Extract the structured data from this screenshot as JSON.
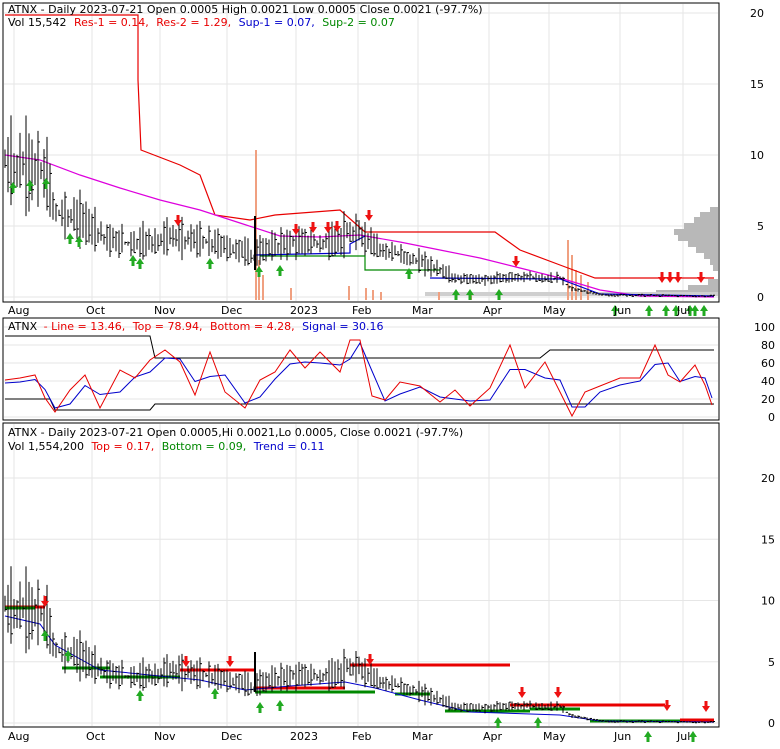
{
  "colors": {
    "red": "#e80000",
    "green": "#008800",
    "blue": "#0000cc",
    "magenta": "#dd00dd",
    "volume": "#f0a080",
    "profile": "#b8b8b8",
    "arrow_up": "#22aa22",
    "arrow_down": "#ee1111"
  },
  "panel1": {
    "header1": "ATNX - Daily 2023-07-21 Open 0.0005  High 0.0021  Low 0.0005  Close 0.0021 (-97.7%)",
    "header2": {
      "vol": "Vol 15,542",
      "res1": "Res-1 = 0.14,",
      "res2": "Res-2 = 1.29,",
      "sup1": "Sup-1 = 0.07,",
      "sup2": "Sup-2 = 0.07"
    },
    "y_ticks": [
      "20",
      "15",
      "10",
      "5",
      "0"
    ],
    "x_ticks": [
      "Aug",
      "Oct",
      "Nov",
      "Dec",
      "2023",
      "Feb",
      "Mar",
      "Apr",
      "May",
      "Jun",
      "Jul"
    ]
  },
  "panel2": {
    "header": {
      "ticker": "ATNX",
      "line": "- Line = 13.46,",
      "top": "Top = 78.94,",
      "bottom": "Bottom = 4.28,",
      "signal": "Signal = 30.16"
    },
    "y_ticks": [
      "100",
      "80",
      "60",
      "40",
      "20",
      "0"
    ]
  },
  "panel3": {
    "header1": "ATNX - Daily 2023-07-21 Open 0.0005,Hi 0.0021,Lo 0.0005, Close 0.0021 (-97.7%)",
    "header2": {
      "vol": "Vol 1,554,200",
      "top": "Top = 0.17,",
      "bottom": "Bottom = 0.09,",
      "trend": "Trend = 0.11"
    },
    "y_ticks": [
      "20",
      "15",
      "10",
      "5",
      "0"
    ],
    "x_ticks": [
      "Aug",
      "Oct",
      "Nov",
      "Dec",
      "2023",
      "Feb",
      "Mar",
      "Apr",
      "May",
      "Jun",
      "Jul"
    ]
  },
  "chart_data": [
    {
      "type": "line",
      "title": "ATNX - Daily 2023-07-21",
      "ylim": [
        0,
        22
      ],
      "x": [
        "Aug",
        "Oct",
        "Nov",
        "Dec",
        "2023",
        "Feb",
        "Mar",
        "Apr",
        "May",
        "Jun",
        "Jul"
      ],
      "series": [
        {
          "name": "Close",
          "values": [
            9.2,
            5.5,
            4.0,
            3.7,
            3.0,
            4.3,
            2.6,
            1.2,
            1.4,
            0.15,
            0.05
          ]
        },
        {
          "name": "Res-2",
          "values": [
            21,
            21,
            9.5,
            6.0,
            5.8,
            5.0,
            4.5,
            4.5,
            3.0,
            1.3,
            1.29
          ]
        },
        {
          "name": "Sup-2",
          "values": [
            11,
            7.0,
            4.5,
            3.8,
            3.2,
            3.0,
            2.5,
            1.5,
            1.5,
            0.3,
            0.07
          ]
        }
      ],
      "levels": {
        "Res-1": 0.14,
        "Res-2": 1.29,
        "Sup-1": 0.07,
        "Sup-2": 0.07
      }
    },
    {
      "type": "line",
      "title": "ATNX",
      "ylim": [
        0,
        100
      ],
      "series": [
        {
          "name": "Line",
          "values": [
            40,
            8,
            50,
            22,
            65,
            30,
            85,
            25,
            42,
            20,
            80,
            8,
            42,
            48,
            75,
            13.46
          ]
        },
        {
          "name": "Signal",
          "values": [
            38,
            12,
            40,
            30,
            55,
            38,
            70,
            32,
            38,
            24,
            62,
            15,
            35,
            45,
            60,
            30.16
          ]
        },
        {
          "name": "Top",
          "values": [
            95,
            79,
            79,
            79,
            79,
            79,
            79,
            90,
            90,
            79,
            79,
            78.94
          ]
        },
        {
          "name": "Bottom",
          "values": [
            22,
            4,
            4,
            4,
            4,
            4,
            4,
            4,
            4,
            5,
            4.28
          ]
        }
      ]
    },
    {
      "type": "line",
      "title": "ATNX - Daily 2023-07-21",
      "ylim": [
        0,
        22
      ],
      "levels": {
        "Top": 0.17,
        "Bottom": 0.09,
        "Trend": 0.11
      },
      "series": [
        {
          "name": "Close",
          "values": [
            9.2,
            5.5,
            4.0,
            3.7,
            3.0,
            4.3,
            2.6,
            1.2,
            1.4,
            0.15,
            0.05
          ]
        }
      ]
    }
  ]
}
